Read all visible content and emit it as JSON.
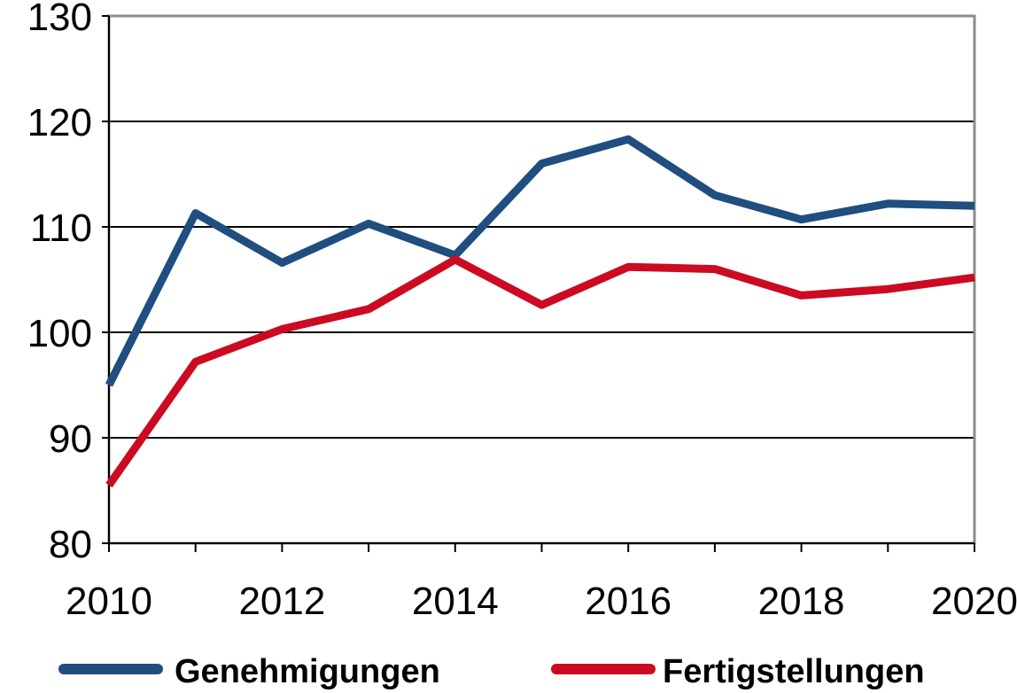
{
  "chart_data": {
    "type": "line",
    "title": "",
    "xlabel": "",
    "ylabel": "",
    "x": [
      2010,
      2011,
      2012,
      2013,
      2014,
      2015,
      2016,
      2017,
      2018,
      2019,
      2020
    ],
    "xlim": [
      2010,
      2020
    ],
    "ylim": [
      80,
      130
    ],
    "x_ticks": [
      "2010",
      "2012",
      "2014",
      "2016",
      "2018",
      "2020"
    ],
    "y_ticks": [
      "80",
      "90",
      "100",
      "110",
      "120",
      "130"
    ],
    "grid": "horizontal",
    "legend_position": "bottom",
    "series": [
      {
        "name": "Genehmigungen",
        "color": "#1f4e7f",
        "values": [
          95.0,
          111.3,
          106.6,
          110.3,
          107.3,
          116.0,
          118.3,
          113.0,
          110.7,
          112.2,
          112.0
        ]
      },
      {
        "name": "Fertigstellungen",
        "color": "#cc0a22",
        "values": [
          85.5,
          97.2,
          100.3,
          102.2,
          106.9,
          102.6,
          106.2,
          106.0,
          103.5,
          104.1,
          105.2
        ]
      }
    ]
  }
}
